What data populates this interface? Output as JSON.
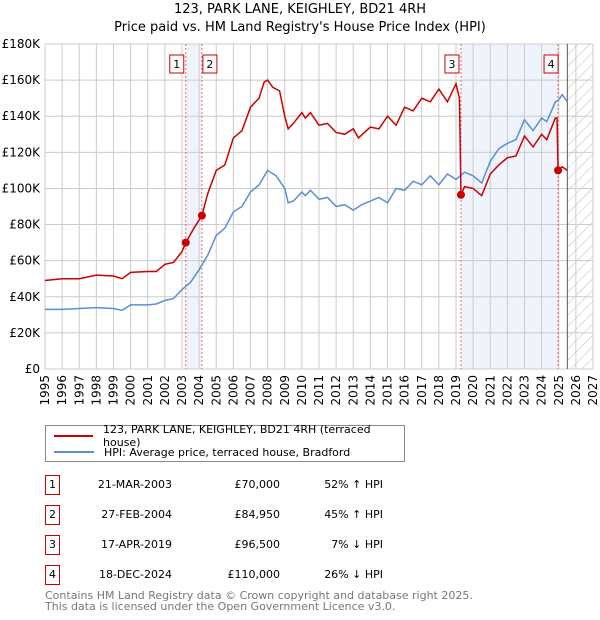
{
  "header": {
    "title_line1": "123, PARK LANE, KEIGHLEY, BD21 4RH",
    "title_line2": "Price paid vs. HM Land Registry's House Price Index (HPI)"
  },
  "chart_data": {
    "type": "line",
    "title": "123, PARK LANE, KEIGHLEY, BD21 4RH — Price paid vs. HM Land Registry's House Price Index (HPI)",
    "xlim": [
      1995,
      2027
    ],
    "ylim": [
      0,
      180000
    ],
    "yticks": [
      0,
      20000,
      40000,
      60000,
      80000,
      100000,
      120000,
      140000,
      160000,
      180000
    ],
    "ytick_labels": [
      "£0",
      "£20K",
      "£40K",
      "£60K",
      "£80K",
      "£100K",
      "£120K",
      "£140K",
      "£160K",
      "£180K"
    ],
    "xticks": [
      1995,
      1996,
      1997,
      1998,
      1999,
      2000,
      2001,
      2002,
      2003,
      2004,
      2005,
      2006,
      2007,
      2008,
      2009,
      2010,
      2011,
      2012,
      2013,
      2014,
      2015,
      2016,
      2017,
      2018,
      2019,
      2020,
      2021,
      2022,
      2023,
      2024,
      2025,
      2026,
      2027
    ],
    "grid": true,
    "colors": {
      "property": "#cc0000",
      "hpi": "#5b8fd4",
      "shade": "#eef3fc"
    },
    "shaded_ranges": [
      [
        2003.22,
        2004.16
      ],
      [
        2019.29,
        2024.96
      ]
    ],
    "forecast_hatch_from": 2025.5,
    "series": [
      {
        "name": "123, PARK LANE, KEIGHLEY, BD21 4RH (terraced house)",
        "key": "property",
        "x": [
          1995,
          1996,
          1997,
          1998,
          1999,
          1999.5,
          2000,
          2001,
          2001.5,
          2002,
          2002.5,
          2003,
          2003.22,
          2003.7,
          2004.16,
          2004.5,
          2005,
          2005.5,
          2006,
          2006.5,
          2007,
          2007.5,
          2007.8,
          2008,
          2008.3,
          2008.7,
          2009,
          2009.2,
          2009.5,
          2010,
          2010.2,
          2010.5,
          2011,
          2011.5,
          2012,
          2012.5,
          2013,
          2013.3,
          2014,
          2014.5,
          2015,
          2015.5,
          2016,
          2016.5,
          2017,
          2017.5,
          2018,
          2018.5,
          2019,
          2019.2,
          2019.29,
          2019.5,
          2020,
          2020.5,
          2021,
          2021.5,
          2022,
          2022.5,
          2023,
          2023.5,
          2024,
          2024.3,
          2024.8,
          2024.9,
          2024.96,
          2025.2,
          2025.5
        ],
        "y": [
          49000,
          50000,
          50000,
          52000,
          51500,
          50000,
          53500,
          54000,
          54000,
          58000,
          59000,
          65000,
          70000,
          78000,
          84950,
          97000,
          110000,
          113000,
          128000,
          132000,
          145000,
          150000,
          159000,
          160000,
          156000,
          154000,
          140000,
          133000,
          136000,
          142000,
          139000,
          142000,
          135000,
          136000,
          131000,
          130000,
          133000,
          128000,
          134000,
          133000,
          140000,
          135000,
          145000,
          143000,
          150000,
          148000,
          155000,
          148000,
          158000,
          150000,
          96500,
          101000,
          100000,
          96000,
          108000,
          113000,
          117000,
          118000,
          129000,
          123000,
          130000,
          127000,
          139000,
          139000,
          110000,
          112000,
          110000
        ]
      },
      {
        "name": "HPI: Average price, terraced house, Bradford",
        "key": "hpi",
        "x": [
          1995,
          1996,
          1997,
          1998,
          1999,
          1999.5,
          2000,
          2001,
          2001.5,
          2002,
          2002.5,
          2003,
          2003.5,
          2004,
          2004.5,
          2005,
          2005.5,
          2006,
          2006.5,
          2007,
          2007.5,
          2008,
          2008.5,
          2009,
          2009.2,
          2009.5,
          2010,
          2010.2,
          2010.5,
          2011,
          2011.5,
          2012,
          2012.5,
          2013,
          2013.5,
          2014,
          2014.5,
          2015,
          2015.5,
          2016,
          2016.5,
          2017,
          2017.5,
          2018,
          2018.5,
          2019,
          2019.5,
          2020,
          2020.5,
          2021,
          2021.5,
          2022,
          2022.5,
          2023,
          2023.5,
          2024,
          2024.3,
          2024.8,
          2025,
          2025.2,
          2025.5
        ],
        "y": [
          33000,
          33000,
          33500,
          34000,
          33500,
          32500,
          35500,
          35500,
          36000,
          38000,
          39000,
          44000,
          48000,
          55000,
          63000,
          74000,
          78000,
          87000,
          90000,
          98000,
          102000,
          110000,
          107000,
          100000,
          92000,
          93000,
          98000,
          96000,
          99000,
          94000,
          95000,
          90000,
          91000,
          88000,
          91000,
          93000,
          95000,
          92000,
          100000,
          99000,
          104000,
          102000,
          107000,
          102000,
          108000,
          105000,
          109000,
          107000,
          103000,
          115000,
          122000,
          125000,
          127000,
          138000,
          132000,
          139000,
          137000,
          148000,
          149000,
          152000,
          148000
        ]
      }
    ],
    "sales": [
      {
        "n": "1",
        "x": 2003.22,
        "y": 70000
      },
      {
        "n": "2",
        "x": 2004.16,
        "y": 84950
      },
      {
        "n": "3",
        "x": 2019.29,
        "y": 96500
      },
      {
        "n": "4",
        "x": 2024.96,
        "y": 110000
      }
    ]
  },
  "legend": {
    "property": "123, PARK LANE, KEIGHLEY, BD21 4RH (terraced house)",
    "hpi": "HPI: Average price, terraced house, Bradford"
  },
  "transactions": [
    {
      "n": "1",
      "date": "21-MAR-2003",
      "price": "£70,000",
      "hpi": "52% ↑ HPI"
    },
    {
      "n": "2",
      "date": "27-FEB-2004",
      "price": "£84,950",
      "hpi": "45% ↑ HPI"
    },
    {
      "n": "3",
      "date": "17-APR-2019",
      "price": "£96,500",
      "hpi": "7% ↓ HPI"
    },
    {
      "n": "4",
      "date": "18-DEC-2024",
      "price": "£110,000",
      "hpi": "26% ↓ HPI"
    }
  ],
  "footer": {
    "line1": "Contains HM Land Registry data © Crown copyright and database right 2025.",
    "line2": "This data is licensed under the Open Government Licence v3.0."
  }
}
